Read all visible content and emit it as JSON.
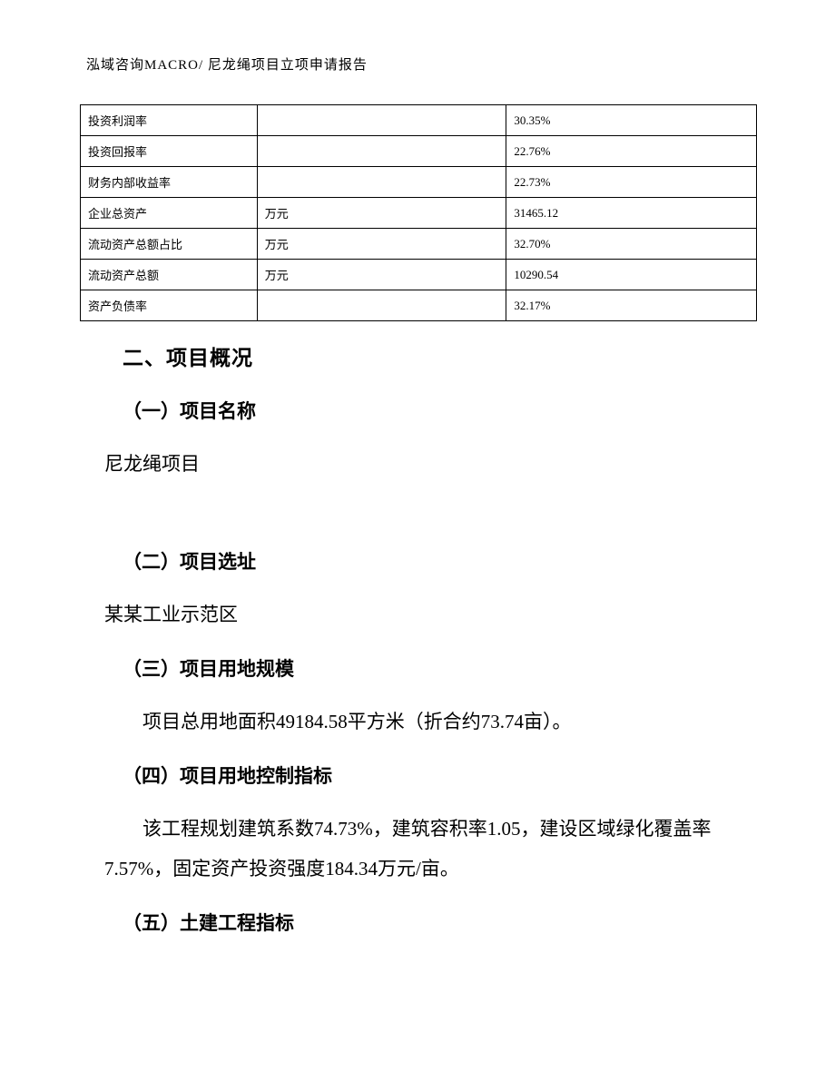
{
  "header": {
    "text": "泓域咨询MACRO/   尼龙绳项目立项申请报告"
  },
  "table": {
    "rows": [
      {
        "label": "投资利润率",
        "unit": "",
        "value": "30.35%"
      },
      {
        "label": "投资回报率",
        "unit": "",
        "value": "22.76%"
      },
      {
        "label": "财务内部收益率",
        "unit": "",
        "value": "22.73%"
      },
      {
        "label": "企业总资产",
        "unit": "万元",
        "value": "31465.12"
      },
      {
        "label": "流动资产总额占比",
        "unit": "万元",
        "value": "32.70%"
      },
      {
        "label": "流动资产总额",
        "unit": "万元",
        "value": "10290.54"
      },
      {
        "label": "资产负债率",
        "unit": "",
        "value": "32.17%"
      }
    ]
  },
  "content": {
    "section_title": "二、项目概况",
    "sub1_title": "（一）项目名称",
    "sub1_text": "尼龙绳项目",
    "sub2_title": "（二）项目选址",
    "sub2_text": "某某工业示范区",
    "sub3_title": "（三）项目用地规模",
    "sub3_text": "项目总用地面积49184.58平方米（折合约73.74亩）。",
    "sub4_title": "（四）项目用地控制指标",
    "sub4_text": "该工程规划建筑系数74.73%，建筑容积率1.05，建设区域绿化覆盖率7.57%，固定资产投资强度184.34万元/亩。",
    "sub5_title": "（五）土建工程指标"
  }
}
